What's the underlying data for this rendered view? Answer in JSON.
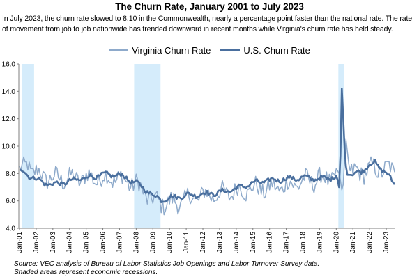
{
  "chart_data": {
    "type": "line",
    "title": "The Churn Rate, January 2001 to July 2023",
    "subtitle": "In July 2023, the churn rate slowed to 8.10 in the Commonwealth, nearly a percentage point faster than the national rate. The rate of movement from job to job nationwide has trended downward in recent months while Virginia's churn rate has held steady.",
    "xlabel": "",
    "ylabel": "",
    "ylim": [
      4.0,
      16.0
    ],
    "yticks": [
      "4.0",
      "6.0",
      "8.0",
      "10.0",
      "12.0",
      "14.0",
      "16.0"
    ],
    "x_start": "2001-01",
    "x_end": "2023-07",
    "xtick_labels": [
      "Jan-01",
      "Jan-02",
      "Jan-03",
      "Jan-04",
      "Jan-05",
      "Jan-06",
      "Jan-07",
      "Jan-08",
      "Jan-09",
      "Jan-10",
      "Jan-11",
      "Jan-12",
      "Jan-13",
      "Jan-14",
      "Jan-15",
      "Jan-16",
      "Jan-17",
      "Jan-18",
      "Jan-19",
      "Jan-20",
      "Jan-21",
      "Jan-22",
      "Jan-23"
    ],
    "recessions": [
      {
        "start": 2,
        "end": 10
      },
      {
        "start": 83,
        "end": 101
      },
      {
        "start": 230,
        "end": 233
      }
    ],
    "series": [
      {
        "name": "Virginia Churn Rate",
        "color": "#8eaacb",
        "anchors": [
          [
            0,
            8.1
          ],
          [
            3,
            8.3
          ],
          [
            6,
            8.9
          ],
          [
            9,
            8.2
          ],
          [
            12,
            8.0
          ],
          [
            18,
            7.8
          ],
          [
            24,
            7.6
          ],
          [
            30,
            7.7
          ],
          [
            36,
            7.6
          ],
          [
            48,
            7.7
          ],
          [
            60,
            7.6
          ],
          [
            66,
            7.7
          ],
          [
            72,
            7.6
          ],
          [
            78,
            7.4
          ],
          [
            84,
            7.2
          ],
          [
            90,
            6.6
          ],
          [
            96,
            6.0
          ],
          [
            102,
            5.9
          ],
          [
            108,
            5.8
          ],
          [
            114,
            5.9
          ],
          [
            120,
            6.1
          ],
          [
            132,
            6.4
          ],
          [
            144,
            6.5
          ],
          [
            156,
            6.7
          ],
          [
            168,
            6.9
          ],
          [
            180,
            6.9
          ],
          [
            192,
            7.1
          ],
          [
            204,
            7.4
          ],
          [
            216,
            7.6
          ],
          [
            225,
            7.7
          ],
          [
            228,
            7.9
          ],
          [
            229,
            8.2
          ],
          [
            230,
            8.0
          ],
          [
            231,
            7.5
          ],
          [
            232,
            6.8
          ],
          [
            233,
            7.2
          ],
          [
            234,
            9.0
          ],
          [
            235,
            10.5
          ],
          [
            236,
            9.6
          ],
          [
            237,
            8.7
          ],
          [
            238,
            8.2
          ],
          [
            240,
            8.0
          ],
          [
            246,
            8.1
          ],
          [
            252,
            8.3
          ],
          [
            258,
            8.3
          ],
          [
            264,
            8.3
          ],
          [
            270,
            8.2
          ]
        ],
        "endpoint": 8.1
      },
      {
        "name": "U.S. Churn Rate",
        "color": "#4a6f9e",
        "anchors": [
          [
            0,
            8.3
          ],
          [
            3,
            8.1
          ],
          [
            6,
            7.9
          ],
          [
            12,
            7.6
          ],
          [
            18,
            7.3
          ],
          [
            24,
            7.2
          ],
          [
            30,
            7.3
          ],
          [
            36,
            7.4
          ],
          [
            42,
            7.6
          ],
          [
            48,
            7.7
          ],
          [
            54,
            7.8
          ],
          [
            60,
            7.9
          ],
          [
            66,
            7.9
          ],
          [
            72,
            7.9
          ],
          [
            78,
            7.6
          ],
          [
            84,
            7.3
          ],
          [
            90,
            6.9
          ],
          [
            96,
            6.4
          ],
          [
            102,
            6.1
          ],
          [
            108,
            6.2
          ],
          [
            114,
            6.3
          ],
          [
            120,
            6.4
          ],
          [
            132,
            6.5
          ],
          [
            144,
            6.6
          ],
          [
            156,
            6.9
          ],
          [
            168,
            7.3
          ],
          [
            180,
            7.5
          ],
          [
            192,
            7.6
          ],
          [
            204,
            7.7
          ],
          [
            216,
            7.6
          ],
          [
            225,
            7.7
          ],
          [
            228,
            7.8
          ],
          [
            229,
            7.5
          ],
          [
            230,
            7.0
          ],
          [
            231,
            9.3
          ],
          [
            232,
            14.2
          ],
          [
            233,
            12.1
          ],
          [
            234,
            9.8
          ],
          [
            235,
            8.5
          ],
          [
            236,
            7.9
          ],
          [
            240,
            7.9
          ],
          [
            246,
            8.2
          ],
          [
            252,
            8.6
          ],
          [
            256,
            8.8
          ],
          [
            258,
            8.6
          ],
          [
            264,
            8.0
          ],
          [
            267,
            7.6
          ],
          [
            270,
            7.2
          ]
        ],
        "endpoint": 7.2
      }
    ]
  },
  "source_note": {
    "line1": "Source: VEC analysis of Bureau of Labor Statistics Job Openings and Labor Turnover Survey data.",
    "line2": "Shaded areas represent economic recessions."
  }
}
